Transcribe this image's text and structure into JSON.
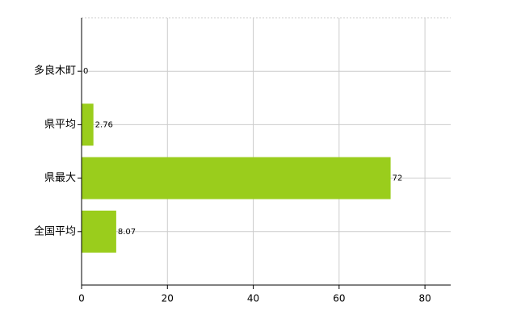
{
  "chart_data": {
    "type": "bar",
    "orientation": "horizontal",
    "categories": [
      "多良木町",
      "県平均",
      "県最大",
      "全国平均"
    ],
    "values": [
      0,
      2.76,
      72,
      8.07
    ],
    "color": "#9acd1c",
    "xlim": [
      0,
      86
    ],
    "xticks": [
      0,
      20,
      40,
      60,
      80
    ],
    "grid": true
  }
}
